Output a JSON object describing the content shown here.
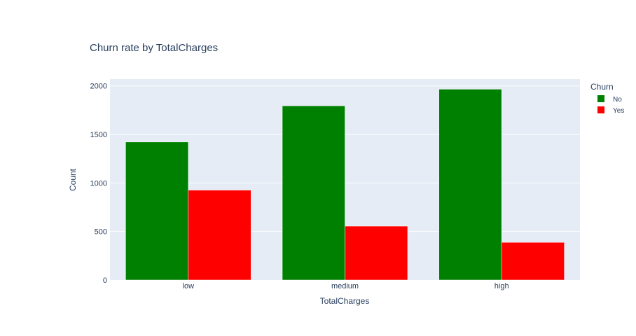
{
  "chart_data": {
    "type": "bar",
    "title": "Churn rate by  TotalCharges",
    "xlabel": "TotalCharges",
    "ylabel": "Count",
    "categories": [
      "low",
      "medium",
      "high"
    ],
    "series": [
      {
        "name": "No",
        "values": [
          1422,
          1795,
          1966
        ],
        "color": "#008000"
      },
      {
        "name": "Yes",
        "values": [
          926,
          555,
          388
        ],
        "color": "#ff0000"
      }
    ],
    "ylim": [
      0,
      2070
    ],
    "yticks": [
      0,
      500,
      1000,
      1500,
      2000
    ],
    "grid": true,
    "legend": {
      "title": "Churn",
      "position": "top-right"
    },
    "plot_bg": "#e5ecf6"
  }
}
